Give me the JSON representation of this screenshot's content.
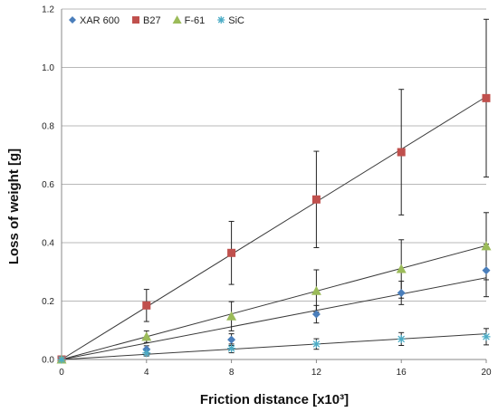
{
  "chart_data": {
    "type": "scatter",
    "xlabel": "Friction distance [x10³]",
    "ylabel": "Loss of weight [g]",
    "xlim": [
      0,
      20
    ],
    "ylim": [
      0,
      1.2
    ],
    "x_ticks": [
      "0",
      "4",
      "8",
      "12",
      "16",
      "20"
    ],
    "y_ticks": [
      "0.0",
      "0.2",
      "0.4",
      "0.6",
      "0.8",
      "1.0",
      "1.2"
    ],
    "grid": "horizontal",
    "legend_position": "top-left",
    "trendlines": true,
    "series": [
      {
        "name": "XAR 600",
        "marker": "diamond",
        "color": "#4a7ebb",
        "x": [
          0,
          4,
          8,
          12,
          16,
          20
        ],
        "y": [
          0.0,
          0.035,
          0.068,
          0.155,
          0.228,
          0.305
        ],
        "err": [
          0.005,
          0.012,
          0.02,
          0.03,
          0.04,
          0.09
        ],
        "trend_end": 0.28
      },
      {
        "name": "B27",
        "marker": "square",
        "color": "#c0504d",
        "x": [
          0,
          4,
          8,
          12,
          16,
          20
        ],
        "y": [
          0.0,
          0.185,
          0.365,
          0.548,
          0.71,
          0.895
        ],
        "err": [
          0.005,
          0.055,
          0.108,
          0.165,
          0.215,
          0.27
        ],
        "trend_end": 0.9
      },
      {
        "name": "F-61",
        "marker": "triangle",
        "color": "#9bbb59",
        "x": [
          0,
          4,
          8,
          12,
          16,
          20
        ],
        "y": [
          0.0,
          0.078,
          0.148,
          0.235,
          0.31,
          0.388
        ],
        "err": [
          0.005,
          0.02,
          0.05,
          0.072,
          0.1,
          0.115
        ],
        "trend_end": 0.39
      },
      {
        "name": "SiC",
        "marker": "asterisk",
        "color": "#4bacc6",
        "x": [
          0,
          4,
          8,
          12,
          16,
          20
        ],
        "y": [
          0.0,
          0.022,
          0.038,
          0.053,
          0.07,
          0.078
        ],
        "err": [
          0.003,
          0.01,
          0.015,
          0.018,
          0.022,
          0.028
        ],
        "trend_end": 0.088
      }
    ]
  }
}
